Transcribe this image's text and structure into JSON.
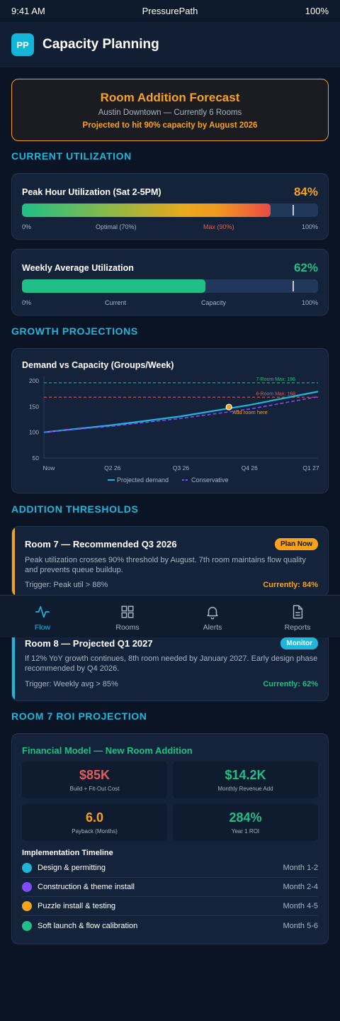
{
  "status_bar": {
    "time": "9:41 AM",
    "app_name": "PressurePath",
    "battery": "100%"
  },
  "header": {
    "logo_text": "PP",
    "title": "Capacity Planning"
  },
  "forecast": {
    "title": "Room Addition Forecast",
    "subtitle": "Austin Downtown — Currently 6 Rooms",
    "projection": "Projected to hit 90% capacity by August 2026",
    "border_color": "#f5a020"
  },
  "utilization": {
    "section_title": "CURRENT UTILIZATION",
    "peak": {
      "label": "Peak Hour Utilization (Sat 2-5PM)",
      "value_text": "84%",
      "fill": 0.84,
      "marker": 0.9,
      "scale": [
        "0%",
        "Optimal (70%)",
        "Max (90%)",
        "100%"
      ],
      "value_color": "#f7a21b"
    },
    "weekly": {
      "label": "Weekly Average Utilization",
      "value_text": "62%",
      "fill": 0.62,
      "marker": 0.9,
      "scale": [
        "0%",
        "Current",
        "Capacity",
        "100%"
      ],
      "value_color": "#1fbf87"
    }
  },
  "growth": {
    "section_title": "GROWTH PROJECTIONS"
  },
  "chart_data": {
    "type": "line",
    "title": "Demand vs Capacity (Groups/Week)",
    "x": [
      "Now",
      "Q2 26",
      "Q3 26",
      "Q4 26",
      "Q1 27"
    ],
    "ylim": [
      50,
      200
    ],
    "y_ticks": [
      200,
      150,
      100,
      50
    ],
    "series": [
      {
        "name": "Projected demand",
        "values": [
          100,
          114,
          131,
          153,
          179
        ],
        "color": "#1fb6d9",
        "style": "solid"
      },
      {
        "name": "Conservative",
        "values": [
          100,
          112,
          127,
          145,
          169
        ],
        "color": "#7c4dff",
        "style": "dashed"
      }
    ],
    "reference_lines": [
      {
        "label": "7-Room Max: 196",
        "value": 196,
        "color": "#1fbf87"
      },
      {
        "label": "6-Room Max: 168",
        "value": 168,
        "color": "#e85a5a"
      }
    ],
    "annotation": {
      "label": "Add room here",
      "x_index": 2.7,
      "value": 149,
      "color": "#f7a21b"
    },
    "grid": true,
    "legend": "bottom"
  },
  "thresholds": {
    "section_title": "ADDITION THRESHOLDS",
    "items": [
      {
        "title": "Room 7 — Recommended Q3 2026",
        "badge": "Plan Now",
        "description": "Peak utilization crosses 90% threshold by August. 7th room maintains flow quality and prevents queue buildup.",
        "trigger": "Trigger: Peak util > 88%",
        "current": "Currently: 84%",
        "accent": "#f7a21b"
      },
      {
        "title": "Room 8 — Projected Q1 2027",
        "badge": "Monitor",
        "description": "If 12% YoY growth continues, 8th room needed by January 2027. Early design phase recommended by Q4 2026.",
        "trigger": "Trigger: Weekly avg > 85%",
        "current": "Currently: 62%",
        "accent": "#1fb6d9"
      }
    ]
  },
  "nav": {
    "items": [
      {
        "label": "Flow",
        "icon": "activity-icon"
      },
      {
        "label": "Rooms",
        "icon": "grid-icon"
      },
      {
        "label": "Alerts",
        "icon": "bell-icon"
      },
      {
        "label": "Reports",
        "icon": "document-icon"
      }
    ],
    "active_color": "#1fb6d9"
  },
  "roi": {
    "section_title": "ROOM 7 ROI PROJECTION",
    "card_title": "Financial Model — New Room Addition",
    "stats": [
      {
        "value": "$85K",
        "label": "Build + Fit-Out Cost",
        "color": "#e85a5a"
      },
      {
        "value": "$14.2K",
        "label": "Monthly Revenue Add",
        "color": "#1fbf87"
      },
      {
        "value": "6.0",
        "label": "Payback (Months)",
        "color": "#f7a21b"
      },
      {
        "value": "284%",
        "label": "Year 1 ROI",
        "color": "#1fbf87"
      }
    ],
    "timeline_title": "Implementation Timeline",
    "timeline": [
      {
        "step": "Design & permitting",
        "months": "Month 1-2",
        "color": "#1fb6d9"
      },
      {
        "step": "Construction & theme install",
        "months": "Month 2-4",
        "color": "#7c4dff"
      },
      {
        "step": "Puzzle install & testing",
        "months": "Month 4-5",
        "color": "#f7a21b"
      },
      {
        "step": "Soft launch & flow calibration",
        "months": "Month 5-6",
        "color": "#1fbf87"
      }
    ]
  }
}
